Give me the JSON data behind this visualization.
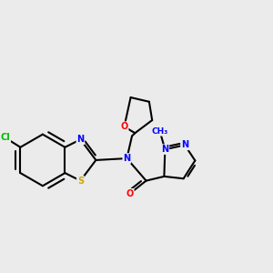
{
  "background_color": "#ebebeb",
  "bond_color": "#000000",
  "atom_colors": {
    "N": "#0000ff",
    "O": "#ff0000",
    "S": "#ccaa00",
    "Cl": "#00bb00",
    "C": "#000000"
  },
  "lw": 1.5,
  "fs": 7.0
}
